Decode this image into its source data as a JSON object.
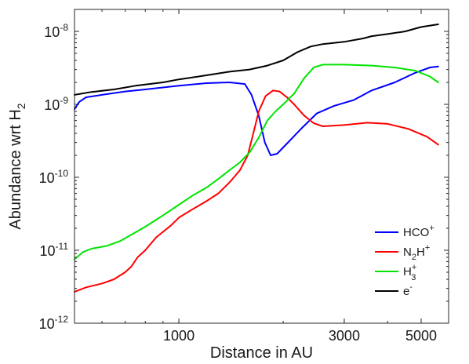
{
  "chart_data": {
    "type": "line",
    "title": "",
    "xlabel": "Distance in AU",
    "ylabel": "Abundance wrt H",
    "ylabel_subscript": "2",
    "xscale": "log",
    "yscale": "log",
    "xlim": [
      500,
      6000
    ],
    "ylim": [
      1e-12,
      2e-08
    ],
    "grid": false,
    "legend_position": "bottom-right",
    "x_ticks": [
      {
        "value": 1000,
        "label": "1000"
      },
      {
        "value": 3000,
        "label": "3000"
      },
      {
        "value": 5000,
        "label": "5000"
      }
    ],
    "y_ticks": [
      {
        "value": 1e-12,
        "base": "10",
        "exp": "-12"
      },
      {
        "value": 1e-11,
        "base": "10",
        "exp": "-11"
      },
      {
        "value": 1e-10,
        "base": "10",
        "exp": "-10"
      },
      {
        "value": 1e-09,
        "base": "10",
        "exp": "-9"
      },
      {
        "value": 1e-08,
        "base": "10",
        "exp": "-8"
      }
    ],
    "series": [
      {
        "name": "HCO+",
        "label_base": "HCO",
        "label_sup": "+",
        "label_sub": "",
        "color": "#0000ff",
        "points": [
          [
            500,
            8.6e-10
          ],
          [
            516,
            1.08e-09
          ],
          [
            540,
            1.25e-09
          ],
          [
            600,
            1.35e-09
          ],
          [
            700,
            1.5e-09
          ],
          [
            800,
            1.6e-09
          ],
          [
            1000,
            1.8e-09
          ],
          [
            1200,
            1.95e-09
          ],
          [
            1400,
            2e-09
          ],
          [
            1550,
            1.9e-09
          ],
          [
            1620,
            1.35e-09
          ],
          [
            1700,
            7e-10
          ],
          [
            1770,
            3e-10
          ],
          [
            1840,
            2e-10
          ],
          [
            1920,
            2.1e-10
          ],
          [
            2050,
            2.9e-10
          ],
          [
            2250,
            4.6e-10
          ],
          [
            2500,
            7.5e-10
          ],
          [
            2800,
            9.5e-10
          ],
          [
            3200,
            1.15e-09
          ],
          [
            3600,
            1.55e-09
          ],
          [
            4200,
            2e-09
          ],
          [
            4800,
            2.7e-09
          ],
          [
            5300,
            3.2e-09
          ],
          [
            5600,
            3.3e-09
          ]
        ]
      },
      {
        "name": "N2H+",
        "label_base": "N",
        "label_sub": "2",
        "label_base2": "H",
        "label_sup": "+",
        "color": "#ff0000",
        "points": [
          [
            500,
            2.7e-12
          ],
          [
            540,
            3.1e-12
          ],
          [
            600,
            3.5e-12
          ],
          [
            650,
            4e-12
          ],
          [
            700,
            5e-12
          ],
          [
            730,
            6e-12
          ],
          [
            760,
            8e-12
          ],
          [
            800,
            1e-11
          ],
          [
            860,
            1.5e-11
          ],
          [
            950,
            2.2e-11
          ],
          [
            1000,
            2.8e-11
          ],
          [
            1100,
            3.7e-11
          ],
          [
            1200,
            4.7e-11
          ],
          [
            1300,
            6e-11
          ],
          [
            1400,
            8.5e-11
          ],
          [
            1500,
            1.25e-10
          ],
          [
            1580,
            2e-10
          ],
          [
            1640,
            4e-10
          ],
          [
            1700,
            8e-10
          ],
          [
            1780,
            1.3e-09
          ],
          [
            1870,
            1.55e-09
          ],
          [
            1950,
            1.5e-09
          ],
          [
            2050,
            1.25e-09
          ],
          [
            2150,
            1e-09
          ],
          [
            2300,
            7e-10
          ],
          [
            2450,
            5.5e-10
          ],
          [
            2600,
            5e-10
          ],
          [
            3000,
            5.2e-10
          ],
          [
            3500,
            5.6e-10
          ],
          [
            4000,
            5.4e-10
          ],
          [
            4600,
            4.6e-10
          ],
          [
            5200,
            3.6e-10
          ],
          [
            5600,
            2.8e-10
          ]
        ]
      },
      {
        "name": "H3+",
        "label_base": "H",
        "label_sup": "+",
        "label_sub": "3",
        "color": "#00e400",
        "points": [
          [
            500,
            7.5e-12
          ],
          [
            530,
            9.5e-12
          ],
          [
            560,
            1.05e-11
          ],
          [
            620,
            1.15e-11
          ],
          [
            680,
            1.35e-11
          ],
          [
            740,
            1.7e-11
          ],
          [
            800,
            2.1e-11
          ],
          [
            900,
            3e-11
          ],
          [
            1000,
            4.2e-11
          ],
          [
            1100,
            5.7e-11
          ],
          [
            1200,
            7.2e-11
          ],
          [
            1300,
            9.5e-11
          ],
          [
            1400,
            1.25e-10
          ],
          [
            1500,
            1.6e-10
          ],
          [
            1600,
            2.2e-10
          ],
          [
            1700,
            3.5e-10
          ],
          [
            1800,
            6e-10
          ],
          [
            1900,
            8e-10
          ],
          [
            2000,
            1e-09
          ],
          [
            2150,
            1.4e-09
          ],
          [
            2300,
            2.3e-09
          ],
          [
            2450,
            3.2e-09
          ],
          [
            2600,
            3.5e-09
          ],
          [
            3000,
            3.5e-09
          ],
          [
            3600,
            3.4e-09
          ],
          [
            4200,
            3.2e-09
          ],
          [
            4800,
            2.9e-09
          ],
          [
            5300,
            2.4e-09
          ],
          [
            5600,
            2e-09
          ]
        ]
      },
      {
        "name": "e-",
        "label_base": "e",
        "label_sup": "-",
        "label_sub": "",
        "color": "#000000",
        "points": [
          [
            500,
            1.35e-09
          ],
          [
            560,
            1.48e-09
          ],
          [
            650,
            1.6e-09
          ],
          [
            750,
            1.8e-09
          ],
          [
            900,
            2e-09
          ],
          [
            1000,
            2.2e-09
          ],
          [
            1200,
            2.5e-09
          ],
          [
            1400,
            2.8e-09
          ],
          [
            1600,
            3e-09
          ],
          [
            1800,
            3.4e-09
          ],
          [
            2000,
            4e-09
          ],
          [
            2200,
            5.2e-09
          ],
          [
            2400,
            6.2e-09
          ],
          [
            2600,
            6.7e-09
          ],
          [
            3000,
            7.2e-09
          ],
          [
            3400,
            8e-09
          ],
          [
            3600,
            8.6e-09
          ],
          [
            4000,
            9.2e-09
          ],
          [
            4500,
            1e-08
          ],
          [
            5000,
            1.15e-08
          ],
          [
            5600,
            1.25e-08
          ]
        ]
      }
    ]
  }
}
